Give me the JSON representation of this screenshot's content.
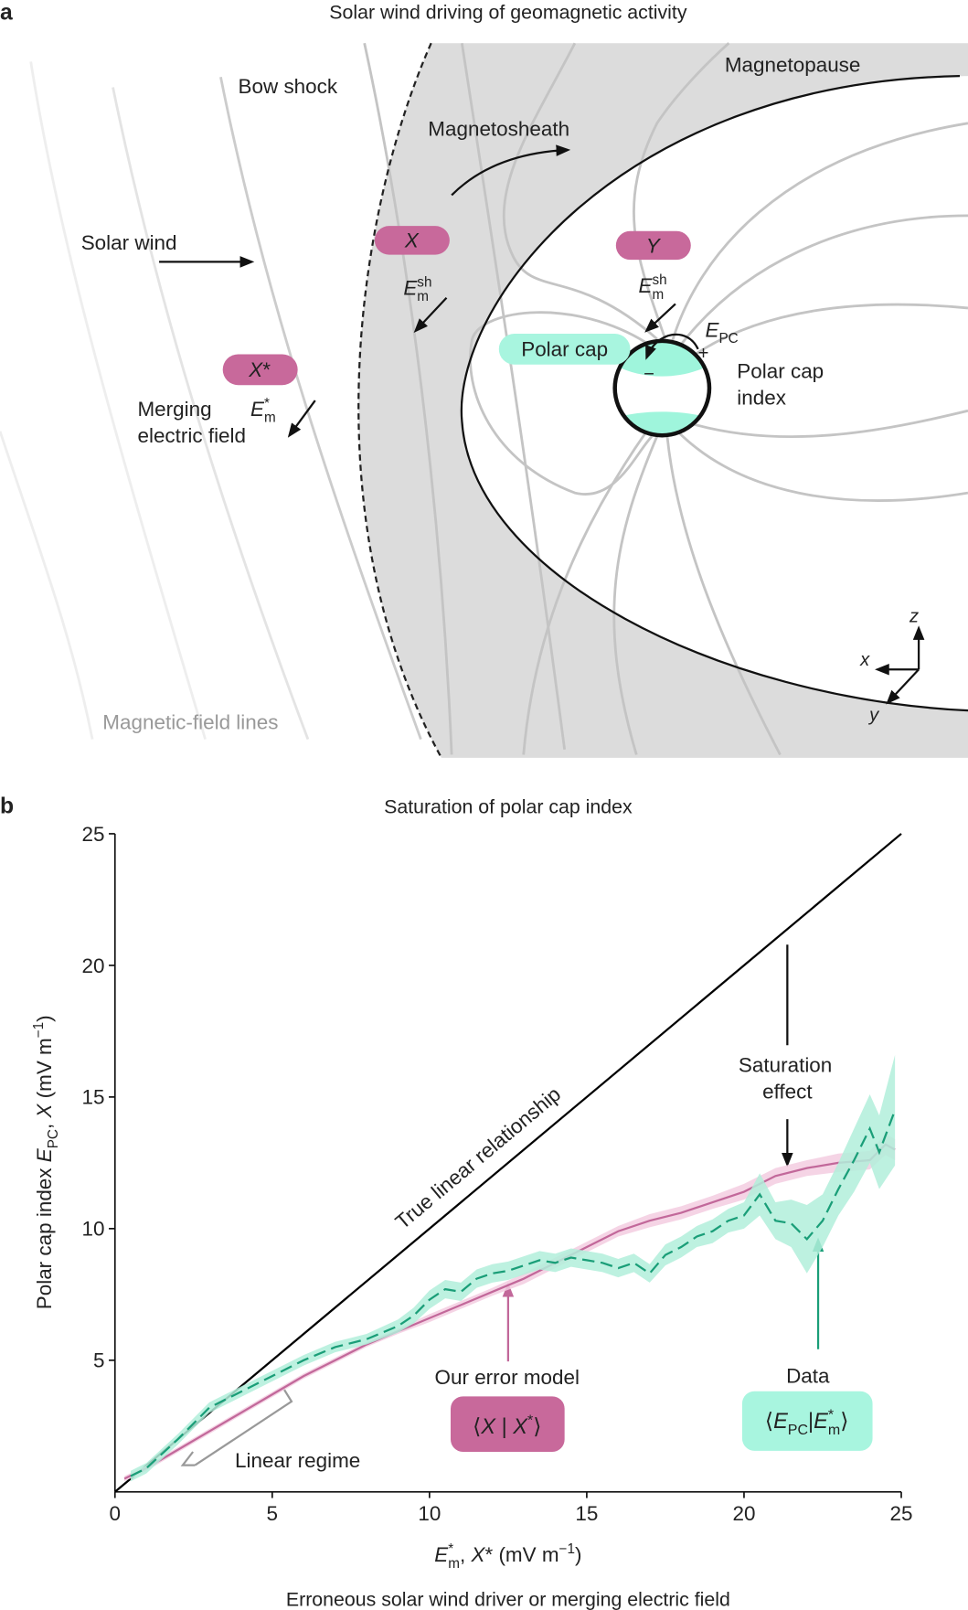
{
  "panel_a": {
    "label": "a",
    "title": "Solar wind driving of geomagnetic activity",
    "labels": {
      "bow_shock": "Bow shock",
      "magnetopause": "Magnetopause",
      "magnetosheath": "Magnetosheath",
      "solar_wind": "Solar wind",
      "merging": [
        "Merging",
        "electric field"
      ],
      "polar_cap": "Polar cap",
      "polar_cap_index": [
        "Polar cap",
        "index"
      ],
      "field_lines": "Magnetic-field lines",
      "plus": "+",
      "minus": "−",
      "axis_x": "x",
      "axis_y": "y",
      "axis_z": "z"
    },
    "pills": {
      "x": [
        {
          "t": "X",
          "s": "it"
        }
      ],
      "y": [
        {
          "t": "Y",
          "s": "it"
        }
      ],
      "xstar": [
        {
          "t": "X",
          "s": "it"
        },
        {
          "t": "*"
        }
      ]
    },
    "fields": {
      "sheath_x": [
        {
          "t": "E",
          "s": "it"
        },
        {
          "t": "sh",
          "s": "sup"
        },
        {
          "t": "m",
          "s": "sub"
        }
      ],
      "sheath_y": [
        {
          "t": "E",
          "s": "it"
        },
        {
          "t": "sh",
          "s": "sup"
        },
        {
          "t": "m",
          "s": "sub"
        }
      ],
      "merging": [
        {
          "t": "E",
          "s": "it"
        },
        {
          "t": "*",
          "s": "sup"
        },
        {
          "t": "m",
          "s": "sub"
        }
      ],
      "polar_cap": [
        {
          "t": "E",
          "s": "it"
        },
        {
          "t": "PC",
          "s": "sub"
        }
      ]
    }
  },
  "chart_data": {
    "type": "line",
    "label": "b",
    "title": "Saturation of polar cap index",
    "xlabel": [
      {
        "t": "E",
        "s": "it"
      },
      {
        "t": "*",
        "s": "sup"
      },
      {
        "t": "m",
        "s": "sub"
      },
      {
        "t": ", "
      },
      {
        "t": "X",
        "s": "it"
      },
      {
        "t": "* (mV m"
      },
      {
        "t": "−1",
        "s": "sup"
      },
      {
        "t": ")"
      }
    ],
    "ylabel": [
      {
        "t": "Polar cap index "
      },
      {
        "t": "E",
        "s": "it"
      },
      {
        "t": "PC",
        "s": "sub"
      },
      {
        "t": ", "
      },
      {
        "t": "X",
        "s": "it"
      },
      {
        "t": " (mV m"
      },
      {
        "t": "−1",
        "s": "sup"
      },
      {
        "t": ")"
      }
    ],
    "caption": "Erroneous solar wind driver or merging electric field",
    "xlim": [
      0,
      25
    ],
    "ylim": [
      0,
      25
    ],
    "xticks": [
      0,
      5,
      10,
      15,
      20,
      25
    ],
    "yticks": [
      5,
      10,
      15,
      20,
      25
    ],
    "series": [
      {
        "name": "True linear relationship",
        "color": "#000000",
        "x": [
          0,
          25
        ],
        "values": [
          0,
          25
        ]
      },
      {
        "name": "Our error model",
        "color": "#c2689a",
        "band_color": "#f3cde0",
        "x": [
          0.3,
          1,
          2,
          3,
          4,
          5,
          6,
          7,
          8,
          9,
          10,
          11,
          12,
          13,
          14,
          15,
          16,
          17,
          18,
          19,
          20,
          21,
          22,
          23,
          24,
          24.5,
          24.8
        ],
        "values": [
          0.5,
          0.9,
          1.6,
          2.3,
          3.0,
          3.7,
          4.4,
          5.0,
          5.6,
          6.1,
          6.6,
          7.1,
          7.6,
          8.1,
          8.7,
          9.3,
          9.9,
          10.3,
          10.6,
          11.0,
          11.4,
          12.0,
          12.3,
          12.5,
          12.6,
          13.2,
          13.0
        ],
        "error": [
          0.1,
          0.1,
          0.1,
          0.1,
          0.1,
          0.1,
          0.1,
          0.1,
          0.1,
          0.1,
          0.15,
          0.15,
          0.15,
          0.2,
          0.2,
          0.2,
          0.2,
          0.25,
          0.25,
          0.25,
          0.3,
          0.3,
          0.3,
          0.35,
          0.35,
          0.4,
          0.4
        ],
        "box": [
          {
            "t": "⟨"
          },
          {
            "t": "X",
            "s": "it"
          },
          {
            "t": " | "
          },
          {
            "t": "X",
            "s": "it"
          },
          {
            "t": "*",
            "s": "sup"
          },
          {
            "t": "⟩"
          }
        ]
      },
      {
        "name": "Data",
        "color": "#1a9e78",
        "band_color": "#b2eedb",
        "dash": true,
        "x": [
          0.5,
          1,
          2,
          3,
          4,
          5,
          6,
          7,
          8,
          9,
          9.5,
          10,
          10.5,
          11,
          11.5,
          12,
          12.5,
          13,
          13.5,
          14,
          14.5,
          15,
          15.5,
          16,
          16.5,
          17,
          17.5,
          18,
          18.5,
          19,
          19.5,
          20,
          20.5,
          21,
          21.5,
          22,
          22.5,
          23,
          23.5,
          24,
          24.3,
          24.8
        ],
        "values": [
          0.6,
          0.9,
          2.0,
          3.2,
          3.8,
          4.4,
          5.0,
          5.5,
          5.8,
          6.3,
          6.7,
          7.3,
          7.7,
          7.6,
          8.1,
          8.3,
          8.4,
          8.6,
          8.8,
          8.7,
          8.9,
          8.8,
          8.7,
          8.5,
          8.7,
          8.3,
          9.0,
          9.3,
          9.7,
          9.9,
          10.3,
          10.5,
          11.3,
          10.3,
          10.2,
          9.6,
          10.3,
          11.5,
          12.6,
          13.8,
          12.9,
          14.5
        ],
        "error": [
          0.2,
          0.2,
          0.2,
          0.2,
          0.2,
          0.2,
          0.2,
          0.2,
          0.2,
          0.25,
          0.3,
          0.35,
          0.35,
          0.35,
          0.35,
          0.35,
          0.35,
          0.35,
          0.35,
          0.35,
          0.35,
          0.35,
          0.35,
          0.35,
          0.35,
          0.35,
          0.4,
          0.4,
          0.4,
          0.45,
          0.45,
          0.5,
          0.8,
          0.7,
          0.9,
          1.3,
          1.0,
          1.0,
          1.2,
          1.3,
          1.4,
          2.1
        ],
        "box": [
          {
            "t": "⟨"
          },
          {
            "t": "E",
            "s": "it"
          },
          {
            "t": "PC",
            "s": "sub"
          },
          {
            "t": "|"
          },
          {
            "t": "E",
            "s": "it"
          },
          {
            "t": "*",
            "s": "sup"
          },
          {
            "t": "m",
            "s": "sub"
          },
          {
            "t": "⟩"
          }
        ]
      }
    ],
    "annotations": {
      "linear_regime": "Linear regime",
      "saturation": [
        "Saturation",
        "effect"
      ]
    }
  }
}
